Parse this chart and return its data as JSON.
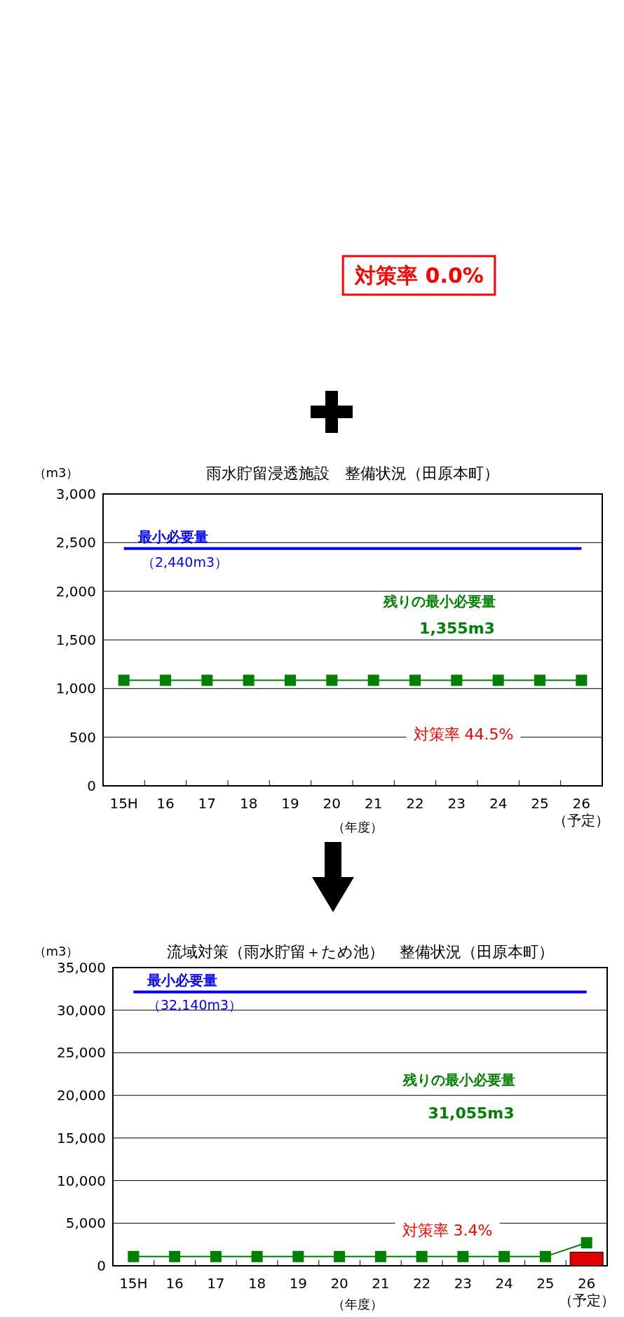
{
  "chart_data": [
    {
      "type": "other",
      "annotations": [
        "対策率  0.0%"
      ]
    },
    {
      "type": "line",
      "title": "雨水貯留浸透施設　整備状況（田原本町）",
      "xlabel": "（年度）",
      "ylabel": "（m3）",
      "categories": [
        "15H",
        "16",
        "17",
        "18",
        "19",
        "20",
        "21",
        "22",
        "23",
        "24",
        "25",
        "26\n（予定）"
      ],
      "series": [
        {
          "color": "#008000",
          "values": [
            1085,
            1085,
            1085,
            1085,
            1085,
            1085,
            1085,
            1085,
            1085,
            1085,
            1085,
            1085
          ]
        }
      ],
      "ylim": [
        0,
        3000
      ],
      "yticks": [
        {
          "value": 0,
          "label": "0"
        },
        {
          "value": 500,
          "label": "500"
        },
        {
          "value": 1000,
          "label": "1,000"
        },
        {
          "value": 1500,
          "label": "1,500"
        },
        {
          "value": 2000,
          "label": "2,000"
        },
        {
          "value": 2500,
          "label": "2,500"
        },
        {
          "value": 3000,
          "label": "3,000"
        }
      ],
      "grid": "y",
      "marker": "square",
      "line_style": "solid",
      "ref_lines": [
        {
          "axis": "y",
          "value": 2440,
          "label": "最小必要量",
          "color": "#0000ff"
        }
      ],
      "annotations": [
        "（2,440m3）",
        "残りの最小必要量",
        "1,355m3",
        "対策率  44.5%"
      ]
    },
    {
      "type": "line",
      "title": "流域対策（雨水貯留＋ため池）　整備状況（田原本町）",
      "xlabel": "（年度）",
      "ylabel": "（m3）",
      "categories": [
        "15H",
        "16",
        "17",
        "18",
        "19",
        "20",
        "21",
        "22",
        "23",
        "24",
        "25",
        "26\n（予定）"
      ],
      "series": [
        {
          "type": "bar",
          "color": "#e00000",
          "values": [
            null,
            null,
            null,
            null,
            null,
            null,
            null,
            null,
            null,
            null,
            null,
            1600
          ]
        },
        {
          "color": "#008000",
          "values": [
            1085,
            1085,
            1085,
            1085,
            1085,
            1085,
            1085,
            1085,
            1085,
            1085,
            1085,
            2700
          ]
        }
      ],
      "ylim": [
        0,
        35000
      ],
      "yticks": [
        {
          "value": 0,
          "label": "0"
        },
        {
          "value": 5000,
          "label": "5,000"
        },
        {
          "value": 10000,
          "label": "10,000"
        },
        {
          "value": 15000,
          "label": "15,000"
        },
        {
          "value": 20000,
          "label": "20,000"
        },
        {
          "value": 25000,
          "label": "25,000"
        },
        {
          "value": 30000,
          "label": "30,000"
        },
        {
          "value": 35000,
          "label": "35,000"
        }
      ],
      "grid": "y",
      "marker": "square",
      "line_style": "solid",
      "ref_lines": [
        {
          "axis": "y",
          "value": 32140,
          "label": "最小必要量",
          "color": "#0000ff"
        }
      ],
      "annotations": [
        "（32,140m3）",
        "残りの最小必要量",
        "31,055m3",
        "対策率  3.4%"
      ]
    }
  ]
}
